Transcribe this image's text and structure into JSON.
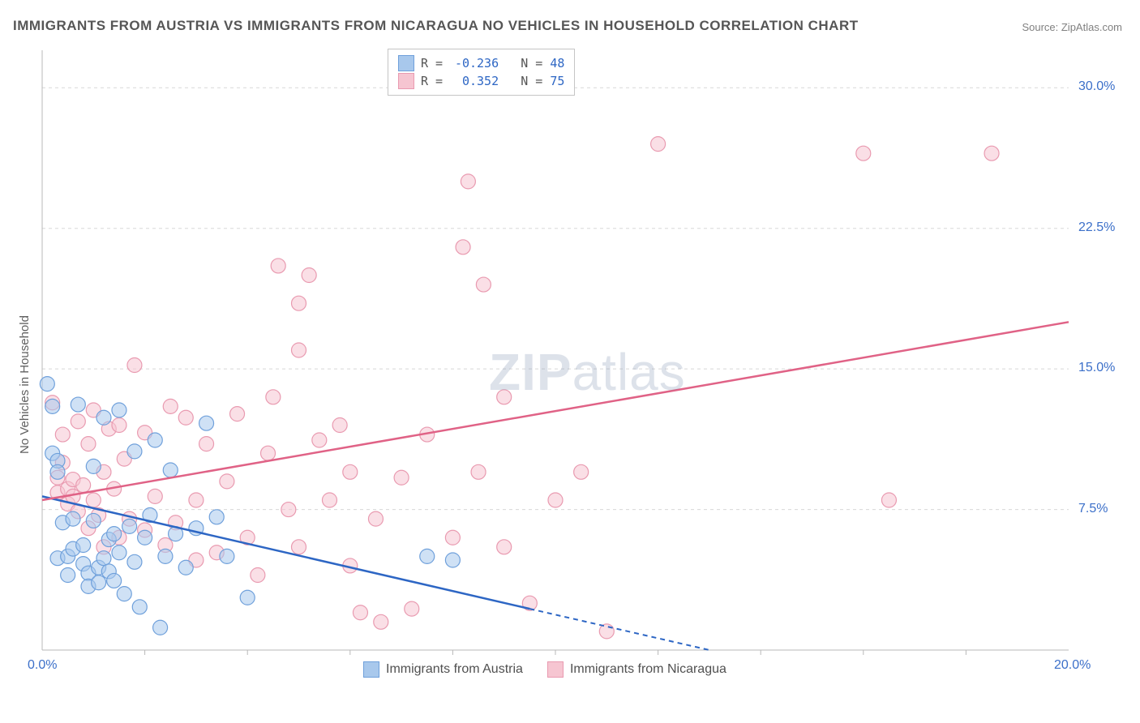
{
  "title": "IMMIGRANTS FROM AUSTRIA VS IMMIGRANTS FROM NICARAGUA NO VEHICLES IN HOUSEHOLD CORRELATION CHART",
  "source": "Source: ZipAtlas.com",
  "ylabel": "No Vehicles in Household",
  "watermark_a": "ZIP",
  "watermark_b": "atlas",
  "colors": {
    "series_a_fill": "#a8c8ec",
    "series_a_stroke": "#6fa0db",
    "series_a_line": "#2d66c4",
    "series_b_fill": "#f6c5d1",
    "series_b_stroke": "#e99ab0",
    "series_b_line": "#e06286",
    "grid": "#d8d8d8",
    "axis": "#b8b8b8",
    "tick_text": "#3b6fc9",
    "value_text": "#2d66c4"
  },
  "plot": {
    "x_range": [
      0,
      20
    ],
    "y_range": [
      0,
      32
    ],
    "x_ticks": [
      {
        "v": 0,
        "label": "0.0%"
      },
      {
        "v": 20,
        "label": "20.0%"
      }
    ],
    "y_ticks": [
      {
        "v": 7.5,
        "label": "7.5%"
      },
      {
        "v": 15,
        "label": "15.0%"
      },
      {
        "v": 22.5,
        "label": "22.5%"
      },
      {
        "v": 30,
        "label": "30.0%"
      }
    ],
    "x_minor": [
      2,
      4,
      6,
      8,
      10,
      12,
      14,
      16,
      18
    ],
    "marker_r": 9
  },
  "stats_legend": {
    "rows": [
      {
        "swatch": "a",
        "r": "-0.236",
        "n": "48"
      },
      {
        "swatch": "b",
        "r": "0.352",
        "n": "75"
      }
    ],
    "r_label": "R =",
    "n_label": "N ="
  },
  "bottom_legend": [
    {
      "swatch": "a",
      "label": "Immigrants from Austria"
    },
    {
      "swatch": "b",
      "label": "Immigrants from Nicaragua"
    }
  ],
  "series_a": {
    "trend": {
      "x1": 0,
      "y1": 8.2,
      "x2": 9.5,
      "y2": 2.2,
      "dash_to_x": 13.0,
      "dash_to_y": 0
    },
    "points": [
      [
        0.1,
        14.2
      ],
      [
        0.2,
        13.0
      ],
      [
        0.2,
        10.5
      ],
      [
        0.3,
        10.1
      ],
      [
        0.3,
        9.5
      ],
      [
        0.3,
        4.9
      ],
      [
        0.4,
        6.8
      ],
      [
        0.5,
        5.0
      ],
      [
        0.5,
        4.0
      ],
      [
        0.6,
        7.0
      ],
      [
        0.6,
        5.4
      ],
      [
        0.7,
        13.1
      ],
      [
        0.8,
        4.6
      ],
      [
        0.8,
        5.6
      ],
      [
        0.9,
        4.1
      ],
      [
        0.9,
        3.4
      ],
      [
        1.0,
        6.9
      ],
      [
        1.0,
        9.8
      ],
      [
        1.1,
        4.4
      ],
      [
        1.1,
        3.6
      ],
      [
        1.2,
        4.9
      ],
      [
        1.2,
        12.4
      ],
      [
        1.3,
        5.9
      ],
      [
        1.3,
        4.2
      ],
      [
        1.4,
        6.2
      ],
      [
        1.4,
        3.7
      ],
      [
        1.5,
        5.2
      ],
      [
        1.5,
        12.8
      ],
      [
        1.6,
        3.0
      ],
      [
        1.7,
        6.6
      ],
      [
        1.8,
        4.7
      ],
      [
        1.8,
        10.6
      ],
      [
        1.9,
        2.3
      ],
      [
        2.0,
        6.0
      ],
      [
        2.1,
        7.2
      ],
      [
        2.2,
        11.2
      ],
      [
        2.3,
        1.2
      ],
      [
        2.4,
        5.0
      ],
      [
        2.5,
        9.6
      ],
      [
        2.6,
        6.2
      ],
      [
        2.8,
        4.4
      ],
      [
        3.0,
        6.5
      ],
      [
        3.2,
        12.1
      ],
      [
        3.4,
        7.1
      ],
      [
        3.6,
        5.0
      ],
      [
        4.0,
        2.8
      ],
      [
        7.5,
        5.0
      ],
      [
        8.0,
        4.8
      ]
    ]
  },
  "series_b": {
    "trend": {
      "x1": 0,
      "y1": 8.0,
      "x2": 20,
      "y2": 17.5
    },
    "points": [
      [
        0.2,
        13.2
      ],
      [
        0.3,
        9.2
      ],
      [
        0.3,
        8.4
      ],
      [
        0.4,
        10.0
      ],
      [
        0.4,
        11.5
      ],
      [
        0.5,
        8.6
      ],
      [
        0.5,
        7.8
      ],
      [
        0.6,
        9.1
      ],
      [
        0.6,
        8.2
      ],
      [
        0.7,
        12.2
      ],
      [
        0.7,
        7.4
      ],
      [
        0.8,
        8.8
      ],
      [
        0.9,
        11.0
      ],
      [
        0.9,
        6.5
      ],
      [
        1.0,
        12.8
      ],
      [
        1.0,
        8.0
      ],
      [
        1.1,
        7.2
      ],
      [
        1.2,
        9.5
      ],
      [
        1.2,
        5.5
      ],
      [
        1.3,
        11.8
      ],
      [
        1.4,
        8.6
      ],
      [
        1.5,
        12.0
      ],
      [
        1.5,
        6.0
      ],
      [
        1.6,
        10.2
      ],
      [
        1.7,
        7.0
      ],
      [
        1.8,
        15.2
      ],
      [
        2.0,
        6.4
      ],
      [
        2.0,
        11.6
      ],
      [
        2.2,
        8.2
      ],
      [
        2.4,
        5.6
      ],
      [
        2.5,
        13.0
      ],
      [
        2.6,
        6.8
      ],
      [
        2.8,
        12.4
      ],
      [
        3.0,
        4.8
      ],
      [
        3.0,
        8.0
      ],
      [
        3.2,
        11.0
      ],
      [
        3.4,
        5.2
      ],
      [
        3.6,
        9.0
      ],
      [
        3.8,
        12.6
      ],
      [
        4.0,
        6.0
      ],
      [
        4.2,
        4.0
      ],
      [
        4.4,
        10.5
      ],
      [
        4.6,
        20.5
      ],
      [
        4.8,
        7.5
      ],
      [
        5.0,
        5.5
      ],
      [
        5.0,
        16.0
      ],
      [
        5.0,
        18.5
      ],
      [
        5.2,
        20.0
      ],
      [
        5.4,
        11.2
      ],
      [
        5.6,
        8.0
      ],
      [
        6.0,
        9.5
      ],
      [
        6.0,
        4.5
      ],
      [
        6.2,
        2.0
      ],
      [
        6.5,
        7.0
      ],
      [
        6.6,
        1.5
      ],
      [
        7.0,
        9.2
      ],
      [
        7.2,
        2.2
      ],
      [
        7.5,
        11.5
      ],
      [
        8.0,
        6.0
      ],
      [
        8.2,
        21.5
      ],
      [
        8.3,
        25.0
      ],
      [
        8.5,
        9.5
      ],
      [
        8.6,
        19.5
      ],
      [
        9.0,
        5.5
      ],
      [
        9.0,
        13.5
      ],
      [
        9.5,
        2.5
      ],
      [
        10.0,
        8.0
      ],
      [
        10.5,
        9.5
      ],
      [
        11.0,
        1.0
      ],
      [
        16.5,
        8.0
      ],
      [
        16.0,
        26.5
      ],
      [
        18.5,
        26.5
      ],
      [
        12.0,
        27.0
      ],
      [
        5.8,
        12.0
      ],
      [
        4.5,
        13.5
      ]
    ]
  }
}
